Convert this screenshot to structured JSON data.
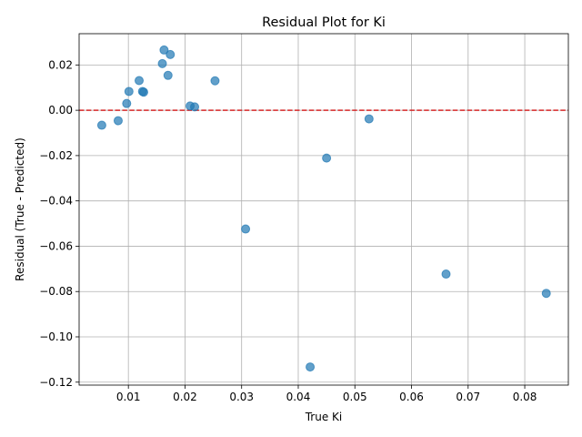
{
  "chart_data": {
    "type": "scatter",
    "title": "Residual Plot for Ki",
    "xlabel": "True Ki",
    "ylabel": "Residual (True - Predicted)",
    "xlim": [
      0.0013,
      0.0877
    ],
    "ylim": [
      -0.1213,
      0.0338
    ],
    "xticks": [
      0.01,
      0.02,
      0.03,
      0.04,
      0.05,
      0.06,
      0.07,
      0.08
    ],
    "xtick_labels": [
      "0.01",
      "0.02",
      "0.03",
      "0.04",
      "0.05",
      "0.06",
      "0.07",
      "0.08"
    ],
    "yticks": [
      0.02,
      0.0,
      -0.02,
      -0.04,
      -0.06,
      -0.08,
      -0.1,
      -0.12
    ],
    "ytick_labels": [
      "0.02",
      "0.00",
      "−0.02",
      "−0.04",
      "−0.06",
      "−0.08",
      "−0.10",
      "−0.12"
    ],
    "grid": true,
    "point_color": "#1f77b4",
    "reference_line": {
      "y": 0.0,
      "color": "#d62728",
      "style": "dashed"
    },
    "points": [
      {
        "x": 0.0053,
        "y": -0.0066
      },
      {
        "x": 0.0082,
        "y": -0.0046
      },
      {
        "x": 0.0097,
        "y": 0.003
      },
      {
        "x": 0.0101,
        "y": 0.0083
      },
      {
        "x": 0.0119,
        "y": 0.0131
      },
      {
        "x": 0.0125,
        "y": 0.0083
      },
      {
        "x": 0.0127,
        "y": 0.008
      },
      {
        "x": 0.016,
        "y": 0.0206
      },
      {
        "x": 0.0163,
        "y": 0.0266
      },
      {
        "x": 0.017,
        "y": 0.0154
      },
      {
        "x": 0.0174,
        "y": 0.0246
      },
      {
        "x": 0.0209,
        "y": 0.0019
      },
      {
        "x": 0.0217,
        "y": 0.0015
      },
      {
        "x": 0.0253,
        "y": 0.013
      },
      {
        "x": 0.0307,
        "y": -0.0524
      },
      {
        "x": 0.0421,
        "y": -0.1133
      },
      {
        "x": 0.045,
        "y": -0.0211
      },
      {
        "x": 0.0525,
        "y": -0.0038
      },
      {
        "x": 0.0661,
        "y": -0.0723
      },
      {
        "x": 0.0838,
        "y": -0.0808
      }
    ]
  }
}
